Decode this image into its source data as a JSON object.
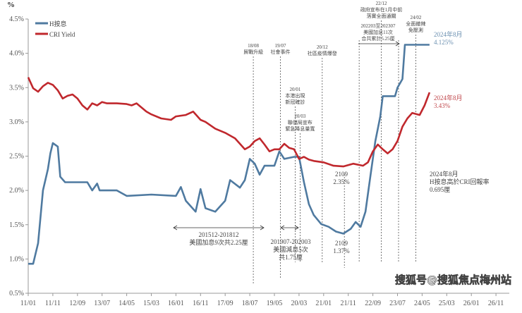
{
  "chart_data": {
    "type": "line",
    "ylabel": "%",
    "ylim": [
      0.5,
      4.5
    ],
    "yticks": [
      "0.5%",
      "1.0%",
      "1.5%",
      "2.0%",
      "2.5%",
      "3.0%",
      "3.5%",
      "4.0%",
      "4.5%"
    ],
    "yticks_values": [
      0.5,
      1.0,
      1.5,
      2.0,
      2.5,
      3.0,
      3.5,
      4.0,
      4.5
    ],
    "xticks": [
      "11/01",
      "11/11",
      "12/09",
      "13/07",
      "14/05",
      "15/03",
      "16/01",
      "16/11",
      "17/09",
      "18/07",
      "19/05",
      "20/03",
      "21/01",
      "21/11",
      "22/09",
      "23/07",
      "24/05",
      "25/03",
      "26/01",
      "26/11"
    ],
    "grid": false,
    "legend": "top-left",
    "series": [
      {
        "name": "H按息",
        "color": "#4f7aa0",
        "points": [
          [
            "11/01",
            0.93
          ],
          [
            "11/03",
            0.93
          ],
          [
            "11/05",
            1.23
          ],
          [
            "11/07",
            2.0
          ],
          [
            "11/09",
            2.31
          ],
          [
            "11/10",
            2.54
          ],
          [
            "11/11",
            2.69
          ],
          [
            "12/01",
            2.64
          ],
          [
            "12/02",
            2.2
          ],
          [
            "12/04",
            2.12
          ],
          [
            "12/09",
            2.12
          ],
          [
            "13/01",
            2.12
          ],
          [
            "13/03",
            2.0
          ],
          [
            "13/05",
            2.1
          ],
          [
            "13/06",
            2.0
          ],
          [
            "14/01",
            2.0
          ],
          [
            "14/05",
            1.92
          ],
          [
            "15/03",
            1.94
          ],
          [
            "16/01",
            1.92
          ],
          [
            "16/03",
            2.05
          ],
          [
            "16/05",
            1.85
          ],
          [
            "16/09",
            1.69
          ],
          [
            "16/11",
            2.02
          ],
          [
            "17/01",
            1.74
          ],
          [
            "17/05",
            1.69
          ],
          [
            "17/09",
            1.85
          ],
          [
            "17/11",
            2.15
          ],
          [
            "18/03",
            2.04
          ],
          [
            "18/05",
            2.15
          ],
          [
            "18/07",
            2.46
          ],
          [
            "18/09",
            2.39
          ],
          [
            "18/11",
            2.23
          ],
          [
            "19/01",
            2.36
          ],
          [
            "19/05",
            2.36
          ],
          [
            "19/07",
            2.57
          ],
          [
            "19/09",
            2.46
          ],
          [
            "20/01",
            2.49
          ],
          [
            "20/03",
            2.49
          ],
          [
            "20/05",
            2.12
          ],
          [
            "20/07",
            1.8
          ],
          [
            "20/09",
            1.64
          ],
          [
            "20/12",
            1.51
          ],
          [
            "21/03",
            1.47
          ],
          [
            "21/06",
            1.4
          ],
          [
            "21/09",
            1.37
          ],
          [
            "21/12",
            1.44
          ],
          [
            "22/02",
            1.54
          ],
          [
            "22/04",
            1.47
          ],
          [
            "22/06",
            1.69
          ],
          [
            "22/08",
            2.21
          ],
          [
            "22/10",
            2.72
          ],
          [
            "22/12",
            3.08
          ],
          [
            "23/01",
            3.375
          ],
          [
            "23/06",
            3.375
          ],
          [
            "23/07",
            3.5
          ],
          [
            "23/09",
            3.625
          ],
          [
            "23/10",
            4.125
          ],
          [
            "24/08",
            4.125
          ]
        ]
      },
      {
        "name": "CRI Yield",
        "color": "#c0282d",
        "points": [
          [
            "11/01",
            3.65
          ],
          [
            "11/03",
            3.49
          ],
          [
            "11/05",
            3.44
          ],
          [
            "11/07",
            3.52
          ],
          [
            "11/09",
            3.57
          ],
          [
            "11/11",
            3.54
          ],
          [
            "12/01",
            3.46
          ],
          [
            "12/03",
            3.34
          ],
          [
            "12/05",
            3.38
          ],
          [
            "12/07",
            3.4
          ],
          [
            "12/09",
            3.34
          ],
          [
            "12/11",
            3.24
          ],
          [
            "13/01",
            3.18
          ],
          [
            "13/03",
            3.27
          ],
          [
            "13/05",
            3.24
          ],
          [
            "13/07",
            3.29
          ],
          [
            "13/09",
            3.27
          ],
          [
            "14/01",
            3.27
          ],
          [
            "14/05",
            3.26
          ],
          [
            "14/07",
            3.24
          ],
          [
            "14/09",
            3.27
          ],
          [
            "15/01",
            3.15
          ],
          [
            "15/03",
            3.11
          ],
          [
            "15/07",
            3.05
          ],
          [
            "15/11",
            3.03
          ],
          [
            "16/01",
            3.08
          ],
          [
            "16/05",
            3.1
          ],
          [
            "16/08",
            3.15
          ],
          [
            "16/11",
            3.03
          ],
          [
            "17/01",
            3.0
          ],
          [
            "17/05",
            2.9
          ],
          [
            "17/09",
            2.84
          ],
          [
            "18/01",
            2.76
          ],
          [
            "18/05",
            2.6
          ],
          [
            "18/07",
            2.64
          ],
          [
            "18/09",
            2.72
          ],
          [
            "18/11",
            2.76
          ],
          [
            "19/01",
            2.67
          ],
          [
            "19/03",
            2.57
          ],
          [
            "19/05",
            2.6
          ],
          [
            "19/07",
            2.6
          ],
          [
            "19/09",
            2.68
          ],
          [
            "19/11",
            2.62
          ],
          [
            "20/01",
            2.6
          ],
          [
            "20/03",
            2.46
          ],
          [
            "20/05",
            2.49
          ],
          [
            "20/07",
            2.45
          ],
          [
            "20/09",
            2.43
          ],
          [
            "21/01",
            2.41
          ],
          [
            "21/05",
            2.36
          ],
          [
            "21/09",
            2.35
          ],
          [
            "22/01",
            2.39
          ],
          [
            "22/05",
            2.36
          ],
          [
            "22/07",
            2.41
          ],
          [
            "22/09",
            2.57
          ],
          [
            "22/11",
            2.67
          ],
          [
            "23/01",
            2.6
          ],
          [
            "23/03",
            2.54
          ],
          [
            "23/05",
            2.6
          ],
          [
            "23/07",
            2.72
          ],
          [
            "23/09",
            2.93
          ],
          [
            "23/11",
            3.05
          ],
          [
            "24/01",
            3.13
          ],
          [
            "24/04",
            3.1
          ],
          [
            "24/06",
            3.24
          ],
          [
            "24/08",
            3.43
          ]
        ]
      }
    ],
    "event_lines": [
      {
        "date": "18/08",
        "lines": [
          "18/08",
          "貿戰升級"
        ]
      },
      {
        "date": "19/07",
        "lines": [
          "19/07",
          "社會事件"
        ]
      },
      {
        "date": "20/01",
        "lines": [
          "20/01",
          "本港出現",
          "新冠確診"
        ]
      },
      {
        "date": "20/03",
        "lines": [
          "20/03",
          "聯儲局宣布",
          "緊急降息量寬"
        ]
      },
      {
        "date": "20/12",
        "lines": [
          "20/12",
          "社區疫情爆發"
        ]
      },
      {
        "date": "21/09",
        "lines": []
      },
      {
        "date": "22/03",
        "lines": []
      },
      {
        "date": "22/12",
        "lines": [
          "22/12",
          "政府宣布在1月中前",
          "落實全面通關"
        ]
      },
      {
        "date": "23/07",
        "lines": []
      },
      {
        "date": "24/02",
        "lines": [
          "24/02",
          "全面撤辣",
          "免壓測"
        ]
      }
    ],
    "annotations": {
      "hike_2015": {
        "lines": [
          "201512-201812",
          "美國加息9次共2.25厘"
        ]
      },
      "cut_2019": {
        "lines": [
          "201907-202003",
          "美國減息5次",
          "共1.75厘"
        ]
      },
      "hike_2022": {
        "lines": [
          "202203至202307",
          "美國加息11次",
          "合共累計5.25厘"
        ]
      },
      "cri_low": {
        "lines": [
          "2109",
          "2.35%"
        ]
      },
      "h_low": {
        "lines": [
          "2109",
          "1.37%"
        ]
      },
      "h_end": {
        "lines": [
          "2024年8月",
          "4.125%"
        ]
      },
      "cri_end": {
        "lines": [
          "2024年8月",
          "3.43%"
        ]
      },
      "spread": {
        "lines": [
          "2024年8月",
          "H按息高於CRI回報率",
          "0.695厘"
        ]
      }
    }
  },
  "watermark": "搜狐号@搜狐焦点梅州站"
}
